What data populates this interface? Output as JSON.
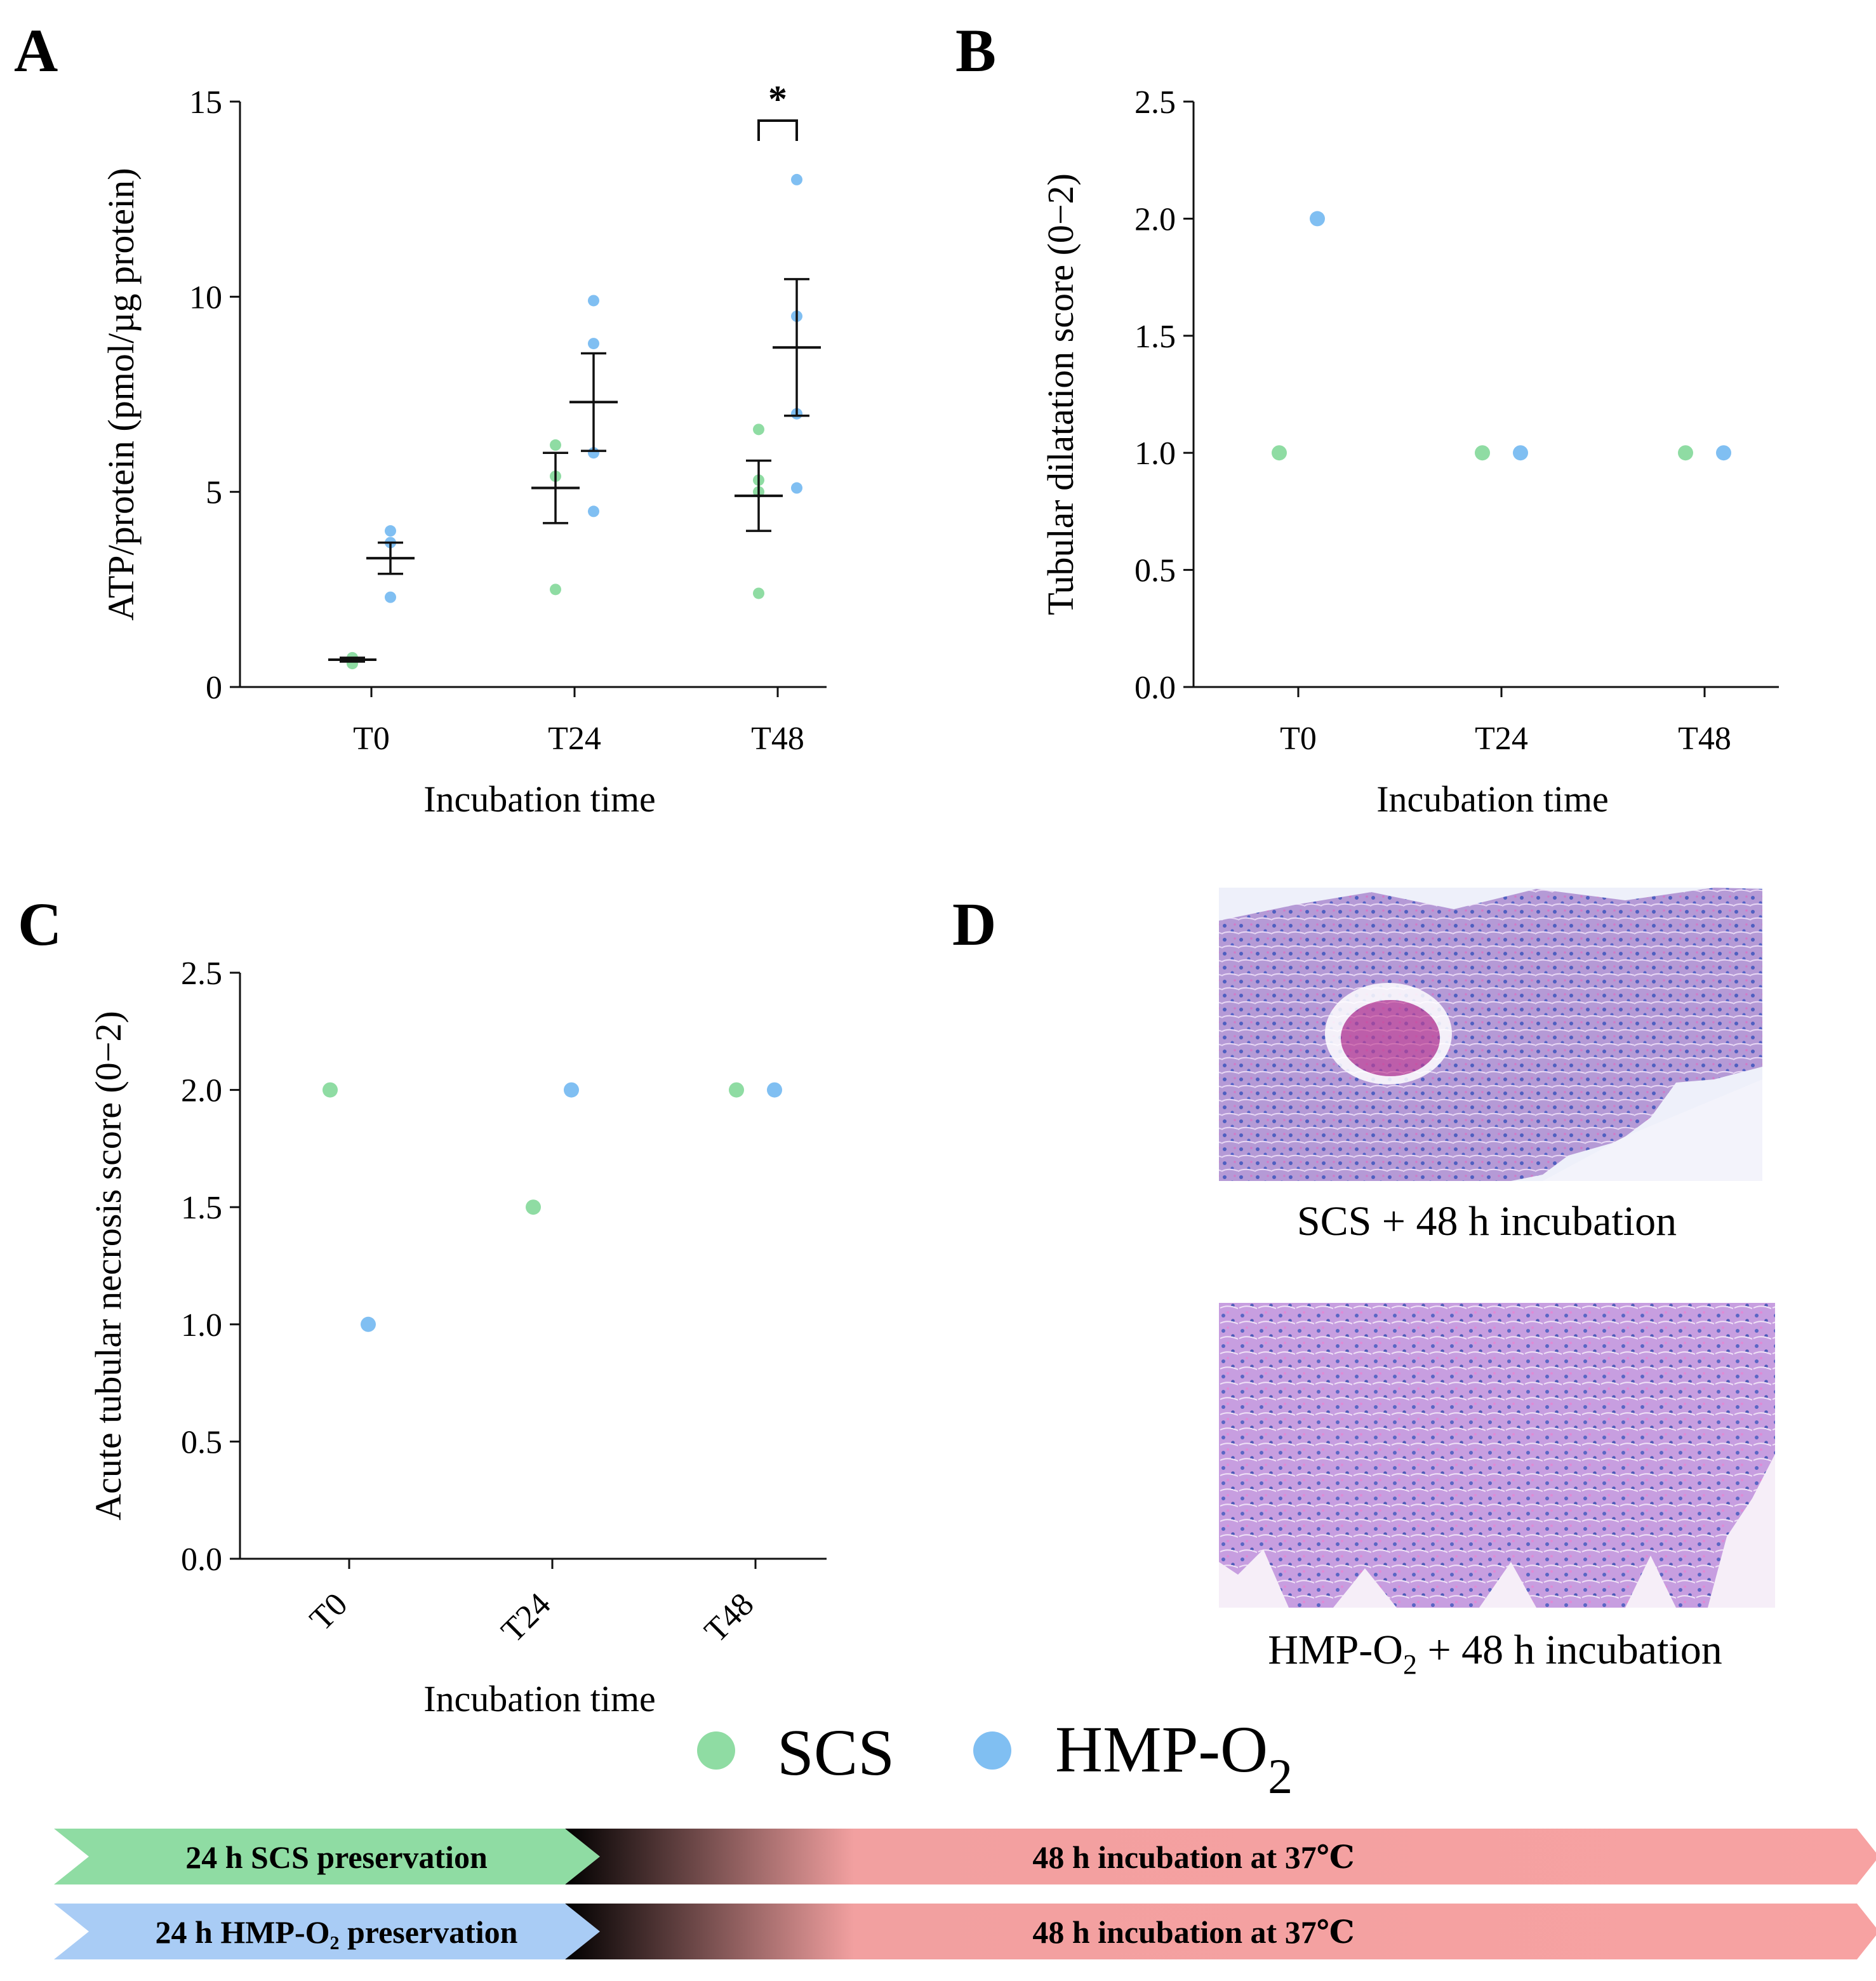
{
  "colors": {
    "SCS": "#8fdca3",
    "HMP_O2": "#80bff2",
    "axis": "#111111",
    "band_green": "#8fdca3",
    "band_blue": "#a9ccf5",
    "band_red": "#f7a2a2"
  },
  "panels": {
    "A": {
      "letter": "A"
    },
    "B": {
      "letter": "B"
    },
    "C": {
      "letter": "C"
    },
    "D": {
      "letter": "D",
      "image1_caption": "SCS + 48 h incubation",
      "image2_caption_main": "HMP-O",
      "image2_caption_sub": "2",
      "image2_caption_rest": " +  48 h incubation"
    }
  },
  "chart_data": [
    {
      "id": "A",
      "type": "scatter",
      "title": "",
      "xlabel": "Incubation time",
      "ylabel": "ATP/protein (pmol/µg protein)",
      "categories": [
        "T0",
        "T24",
        "T48"
      ],
      "ylim": [
        0,
        15
      ],
      "yticks": [
        "0",
        "5",
        "10",
        "15"
      ],
      "series": [
        {
          "name": "SCS",
          "points": [
            [
              0,
              0.6
            ],
            [
              0,
              0.7
            ],
            [
              0,
              0.75
            ],
            [
              1,
              2.5
            ],
            [
              1,
              5.4
            ],
            [
              1,
              6.2
            ],
            [
              2,
              2.4
            ],
            [
              2,
              5.3
            ],
            [
              2,
              5.0
            ],
            [
              2,
              6.6
            ]
          ],
          "mean": [
            0.7,
            5.1,
            4.9
          ],
          "sem": [
            0.05,
            0.9,
            0.9
          ]
        },
        {
          "name": "HMP-O2",
          "points": [
            [
              0,
              2.3
            ],
            [
              0,
              3.7
            ],
            [
              0,
              4.0
            ],
            [
              1,
              4.5
            ],
            [
              1,
              6.0
            ],
            [
              1,
              8.8
            ],
            [
              1,
              9.9
            ],
            [
              2,
              5.1
            ],
            [
              2,
              7.0
            ],
            [
              2,
              9.5
            ],
            [
              2,
              13.0
            ]
          ],
          "mean": [
            3.3,
            7.3,
            8.7
          ],
          "sem": [
            0.4,
            1.25,
            1.75
          ]
        }
      ],
      "annotation": {
        "text": "*",
        "category": "T48"
      }
    },
    {
      "id": "B",
      "type": "scatter",
      "title": "",
      "xlabel": "Incubation time",
      "ylabel": "Tubular dilatation score (0−2)",
      "categories": [
        "T0",
        "T24",
        "T48"
      ],
      "ylim": [
        0,
        2.5
      ],
      "yticks": [
        "0.0",
        "0.5",
        "1.0",
        "1.5",
        "2.0",
        "2.5"
      ],
      "series": [
        {
          "name": "SCS",
          "values": [
            1.0,
            1.0,
            1.0
          ]
        },
        {
          "name": "HMP-O2",
          "values": [
            2.0,
            1.0,
            1.0
          ]
        }
      ]
    },
    {
      "id": "C",
      "type": "scatter",
      "title": "",
      "xlabel": "Incubation time",
      "ylabel": "Acute tubular necrosis score (0−2)",
      "categories": [
        "T0",
        "T24",
        "T48"
      ],
      "ylim": [
        0,
        2.5
      ],
      "yticks": [
        "0.0",
        "0.5",
        "1.0",
        "1.5",
        "2.0",
        "2.5"
      ],
      "series": [
        {
          "name": "SCS",
          "values": [
            2.0,
            1.5,
            2.0
          ]
        },
        {
          "name": "HMP-O2",
          "values": [
            1.0,
            2.0,
            2.0
          ]
        }
      ]
    }
  ],
  "legend": {
    "scs_label": "SCS",
    "hmp_label_main": "HMP-O",
    "hmp_label_sub": "2"
  },
  "timeline": {
    "row1_left": "24 h SCS preservation",
    "row1_right": "48 h incubation at 37℃",
    "row2_left": "24 h HMP-O₂ preservation",
    "row2_right": "48 h incubation at 37℃"
  }
}
